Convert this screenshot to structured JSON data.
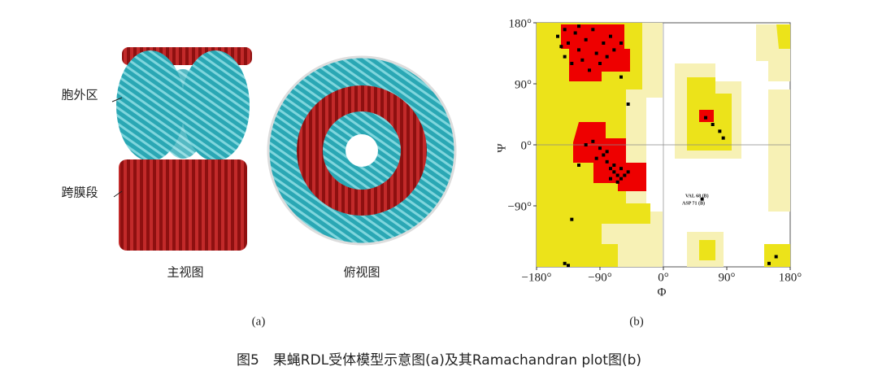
{
  "figure": {
    "label_extracellular": "胞外区",
    "label_transmembrane": "跨膜段",
    "label_front": "主视图",
    "label_top": "俯视图",
    "panel_a": "(a)",
    "panel_b": "(b)",
    "caption": "图5　果蝇RDL受体模型示意图(a)及其Ramachandran plot图(b)"
  },
  "chart_data": {
    "type": "scatter",
    "xlabel": "Φ",
    "ylabel": "Ψ",
    "color": "#000000",
    "xlim": [
      -180,
      180
    ],
    "ylim": [
      -180,
      180
    ],
    "xticks": [
      {
        "value": -180,
        "label": "−180°"
      },
      {
        "value": -90,
        "label": "−90°"
      },
      {
        "value": 0,
        "label": "0°"
      },
      {
        "value": 90,
        "label": "90°"
      },
      {
        "value": 180,
        "label": "180°"
      }
    ],
    "yticks": [
      {
        "value": -90,
        "label": "−90°"
      },
      {
        "value": 0,
        "label": "0°"
      },
      {
        "value": 90,
        "label": "90°"
      },
      {
        "value": 180,
        "label": "180°"
      }
    ],
    "annotations": [
      "VAL 68 (B)",
      "ASP 71 (B)"
    ],
    "x": [
      -150,
      -140,
      -135,
      -125,
      -120,
      -110,
      -100,
      -95,
      -85,
      -75,
      -140,
      -130,
      -115,
      -105,
      -90,
      -80,
      -70,
      -60,
      -120,
      -145,
      -100,
      -90,
      -85,
      -80,
      -75,
      -70,
      -65,
      -60,
      -70,
      -80,
      -95,
      -60,
      -55,
      -65,
      -75,
      -110,
      -50,
      -120,
      -60,
      -50,
      -130,
      -140,
      -135,
      60,
      70,
      80,
      85,
      55,
      150,
      160
    ],
    "values": [
      160,
      170,
      150,
      165,
      140,
      155,
      170,
      135,
      150,
      160,
      130,
      120,
      125,
      110,
      120,
      130,
      140,
      150,
      175,
      145,
      5,
      -5,
      -15,
      -25,
      -35,
      -40,
      -45,
      -50,
      -30,
      -10,
      -20,
      -35,
      -45,
      -55,
      -50,
      0,
      -40,
      -30,
      100,
      60,
      -110,
      -175,
      -178,
      40,
      30,
      20,
      10,
      -80,
      -175,
      -165
    ]
  }
}
